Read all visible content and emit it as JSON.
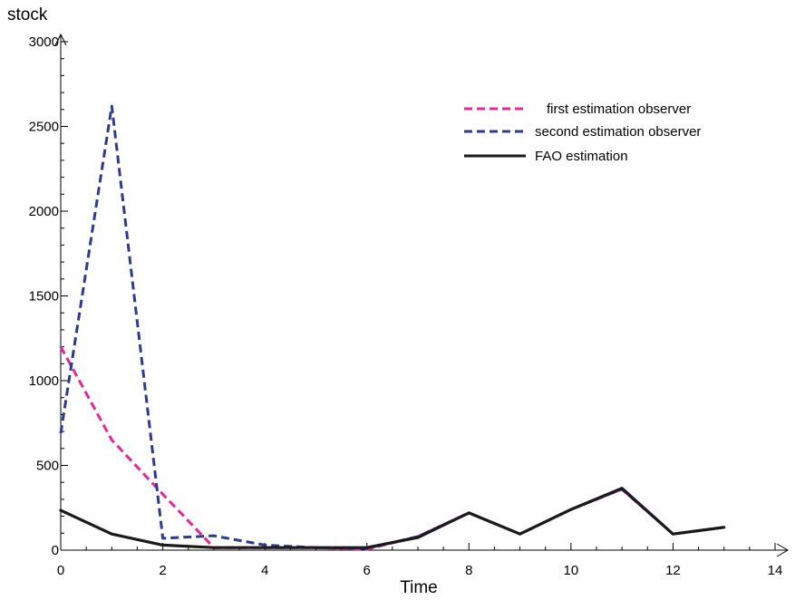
{
  "chart_data": {
    "type": "line",
    "title": "",
    "xlabel": "Time",
    "ylabel": "stock",
    "xlim": [
      0,
      14
    ],
    "ylim": [
      0,
      3000
    ],
    "x_ticks": [
      0,
      2,
      4,
      6,
      8,
      10,
      12,
      14
    ],
    "y_ticks": [
      0,
      500,
      1000,
      1500,
      2000,
      2500,
      3000
    ],
    "x_tick_labels": [
      "0",
      "2",
      "4",
      "6",
      "8",
      "10",
      "12",
      "14"
    ],
    "y_tick_labels": [
      "0",
      "500",
      "1000",
      "1500",
      "2000",
      "2500",
      "3000"
    ],
    "grid": false,
    "legend_position": "top-right",
    "series": [
      {
        "name": "first estimation observer",
        "color": "#e0299a",
        "dash": true,
        "x": [
          0,
          1,
          2,
          3,
          4,
          5,
          6,
          7,
          8,
          9,
          10,
          11,
          12,
          13
        ],
        "y": [
          1200,
          650,
          330,
          15,
          15,
          15,
          5,
          80,
          220,
          95,
          240,
          360,
          95,
          135
        ]
      },
      {
        "name": "second estimation observer",
        "color": "#2e3a8c",
        "dash": true,
        "x": [
          0,
          1,
          2,
          3,
          4,
          5,
          6,
          7,
          8,
          9,
          10,
          11,
          12,
          13
        ],
        "y": [
          690,
          2620,
          70,
          85,
          30,
          15,
          10,
          80,
          220,
          95,
          240,
          360,
          95,
          135
        ]
      },
      {
        "name": "FAO estimation",
        "color": "#1a1a1a",
        "dash": false,
        "x": [
          0,
          1,
          2,
          3,
          4,
          5,
          6,
          7,
          8,
          9,
          10,
          11,
          12,
          13
        ],
        "y": [
          235,
          95,
          30,
          15,
          15,
          15,
          15,
          75,
          220,
          95,
          240,
          365,
          95,
          135
        ]
      }
    ]
  }
}
